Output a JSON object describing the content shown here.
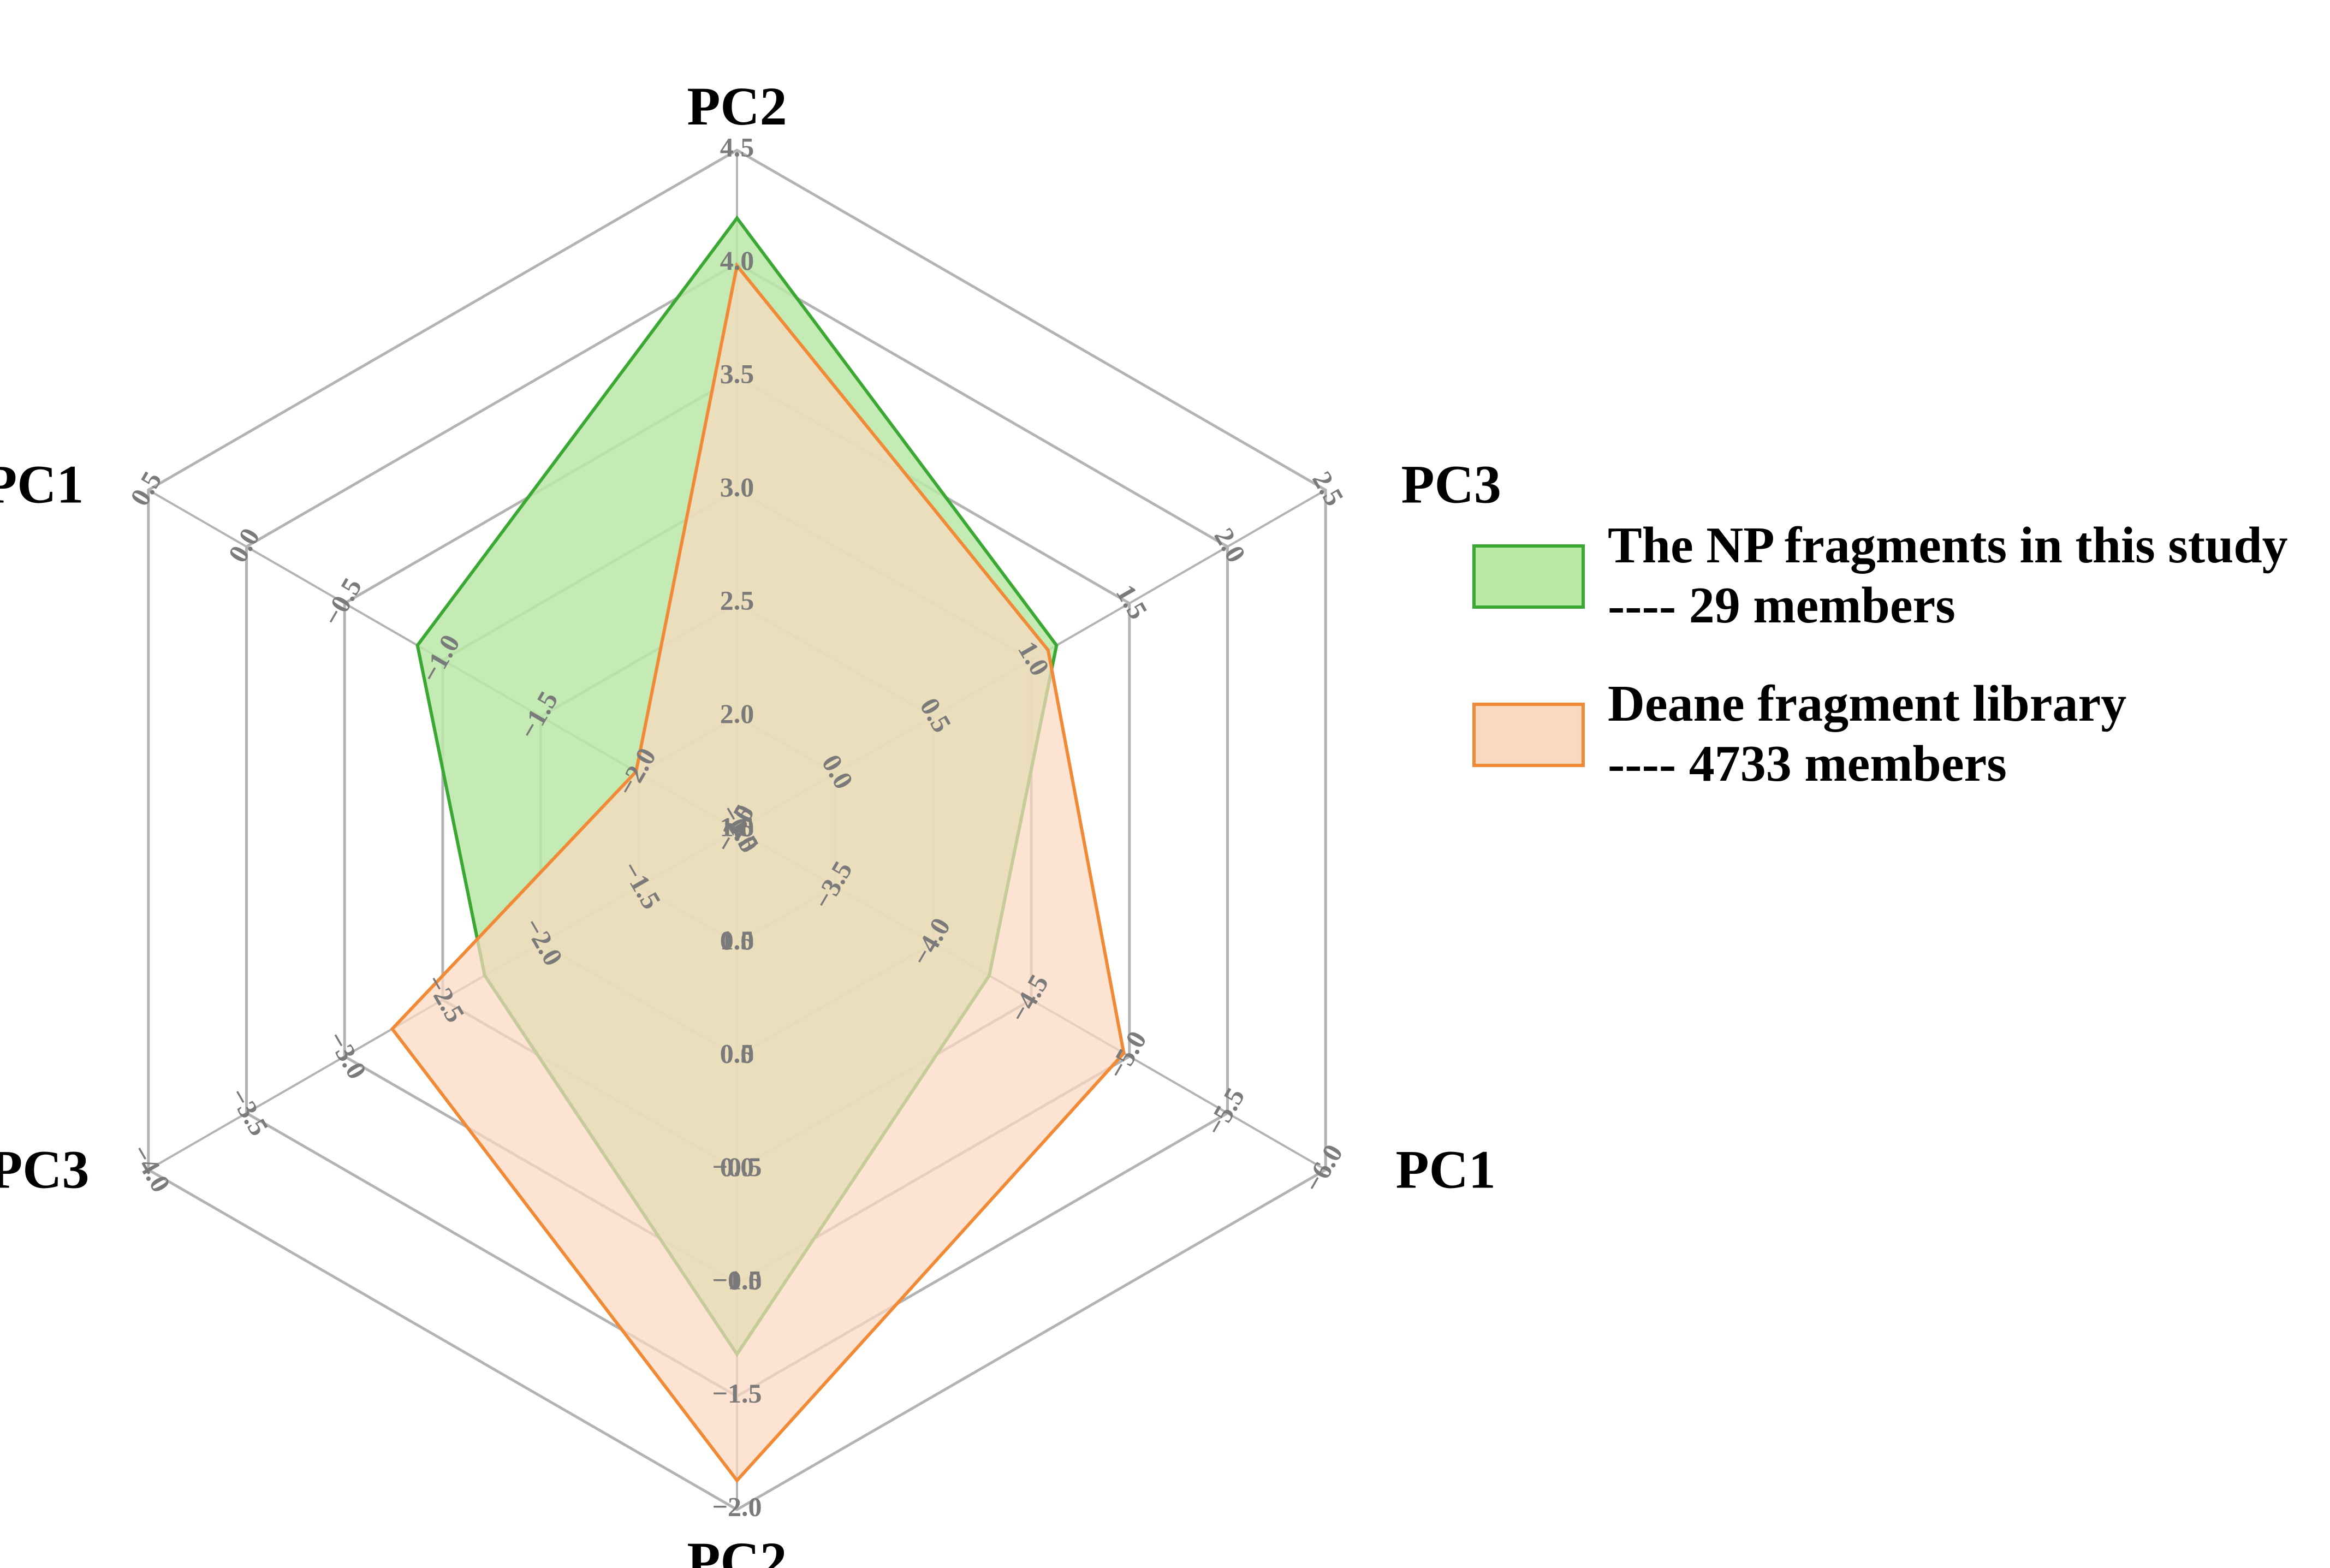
{
  "chart_data": {
    "type": "radar",
    "axes": [
      {
        "name": "PC2",
        "ticks": [
          "−0.5",
          "0.0",
          "0.5",
          "1.0",
          "1.5",
          "2.0",
          "2.5",
          "3.0",
          "3.5",
          "4.0",
          "4.5"
        ],
        "range": [
          -0.5,
          4.5
        ]
      },
      {
        "name": "PC3",
        "ticks": [
          "−0.5",
          "0.0",
          "0.5",
          "1.0",
          "1.5",
          "2.0",
          "2.5"
        ],
        "range": [
          -1.0,
          2.5
        ]
      },
      {
        "name": "PC1",
        "ticks": [
          "−3.0",
          "−3.5",
          "−4.0",
          "−4.5",
          "−5.0",
          "−5.5",
          "−6.0"
        ],
        "range": [
          -2.5,
          -6.0
        ]
      },
      {
        "name": "PC2",
        "ticks": [
          "1.0",
          "0.5",
          "0.0",
          "−0.5",
          "−1.0",
          "−1.5",
          "−2.0"
        ],
        "range": [
          1.5,
          -2.0
        ]
      },
      {
        "name": "PC3",
        "ticks": [
          "−1.0",
          "−1.5",
          "−2.0",
          "−2.5",
          "−3.0",
          "−3.5",
          "−4.0"
        ],
        "range": [
          -0.5,
          -4.0
        ]
      },
      {
        "name": "PC1",
        "ticks": [
          "−2.5",
          "−2.0",
          "−1.5",
          "−1.0",
          "−0.5",
          "0.0",
          "0.5"
        ],
        "range": [
          -3.0,
          0.5
        ]
      }
    ],
    "series": [
      {
        "name": "The NP fragments in this study",
        "members": "---- 29 members",
        "color": "#3aa832",
        "fill": "#b9e8a6",
        "values": [
          4.0,
          0.9,
          -4.0,
          -1.2,
          -2.0,
          -1.1
        ]
      },
      {
        "name": "Deane fragment library",
        "members": "---- 4733 members",
        "color": "#f08a36",
        "fill": "#fbd8c0",
        "values": [
          3.65,
          0.85,
          -4.8,
          -1.85,
          -2.55,
          -2.4
        ]
      }
    ],
    "legend_position": "right"
  }
}
